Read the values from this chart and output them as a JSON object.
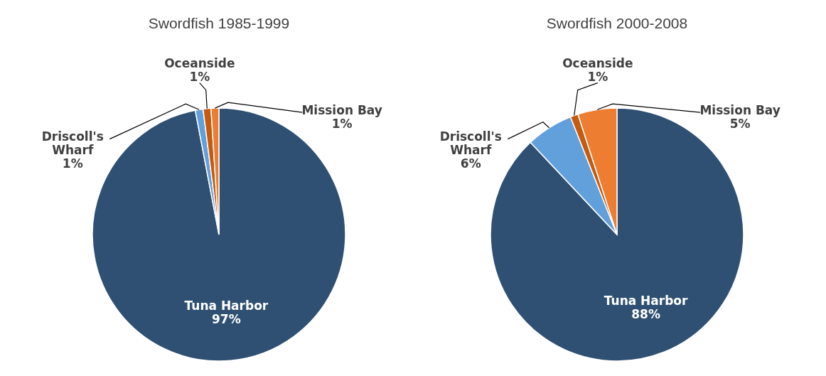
{
  "chart_data": [
    {
      "type": "pie",
      "title": "Swordfish 1985-1999",
      "categories": [
        "Tuna Harbor",
        "Driscoll's Wharf",
        "Oceanside",
        "Mission Bay"
      ],
      "values": [
        97,
        1,
        1,
        1
      ],
      "value_labels": [
        "97%",
        "1%",
        "1%",
        "1%"
      ],
      "colors": [
        "#2f5072",
        "#62a0dc",
        "#c55a11",
        "#ed7d31"
      ]
    },
    {
      "type": "pie",
      "title": "Swordfish 2000-2008",
      "categories": [
        "Tuna Harbor",
        "Driscoll's Wharf",
        "Oceanside",
        "Mission Bay"
      ],
      "values": [
        88,
        6,
        1,
        5
      ],
      "value_labels": [
        "88%",
        "6%",
        "1%",
        "5%"
      ],
      "colors": [
        "#2f5072",
        "#62a0dc",
        "#c55a11",
        "#ed7d31"
      ]
    }
  ]
}
